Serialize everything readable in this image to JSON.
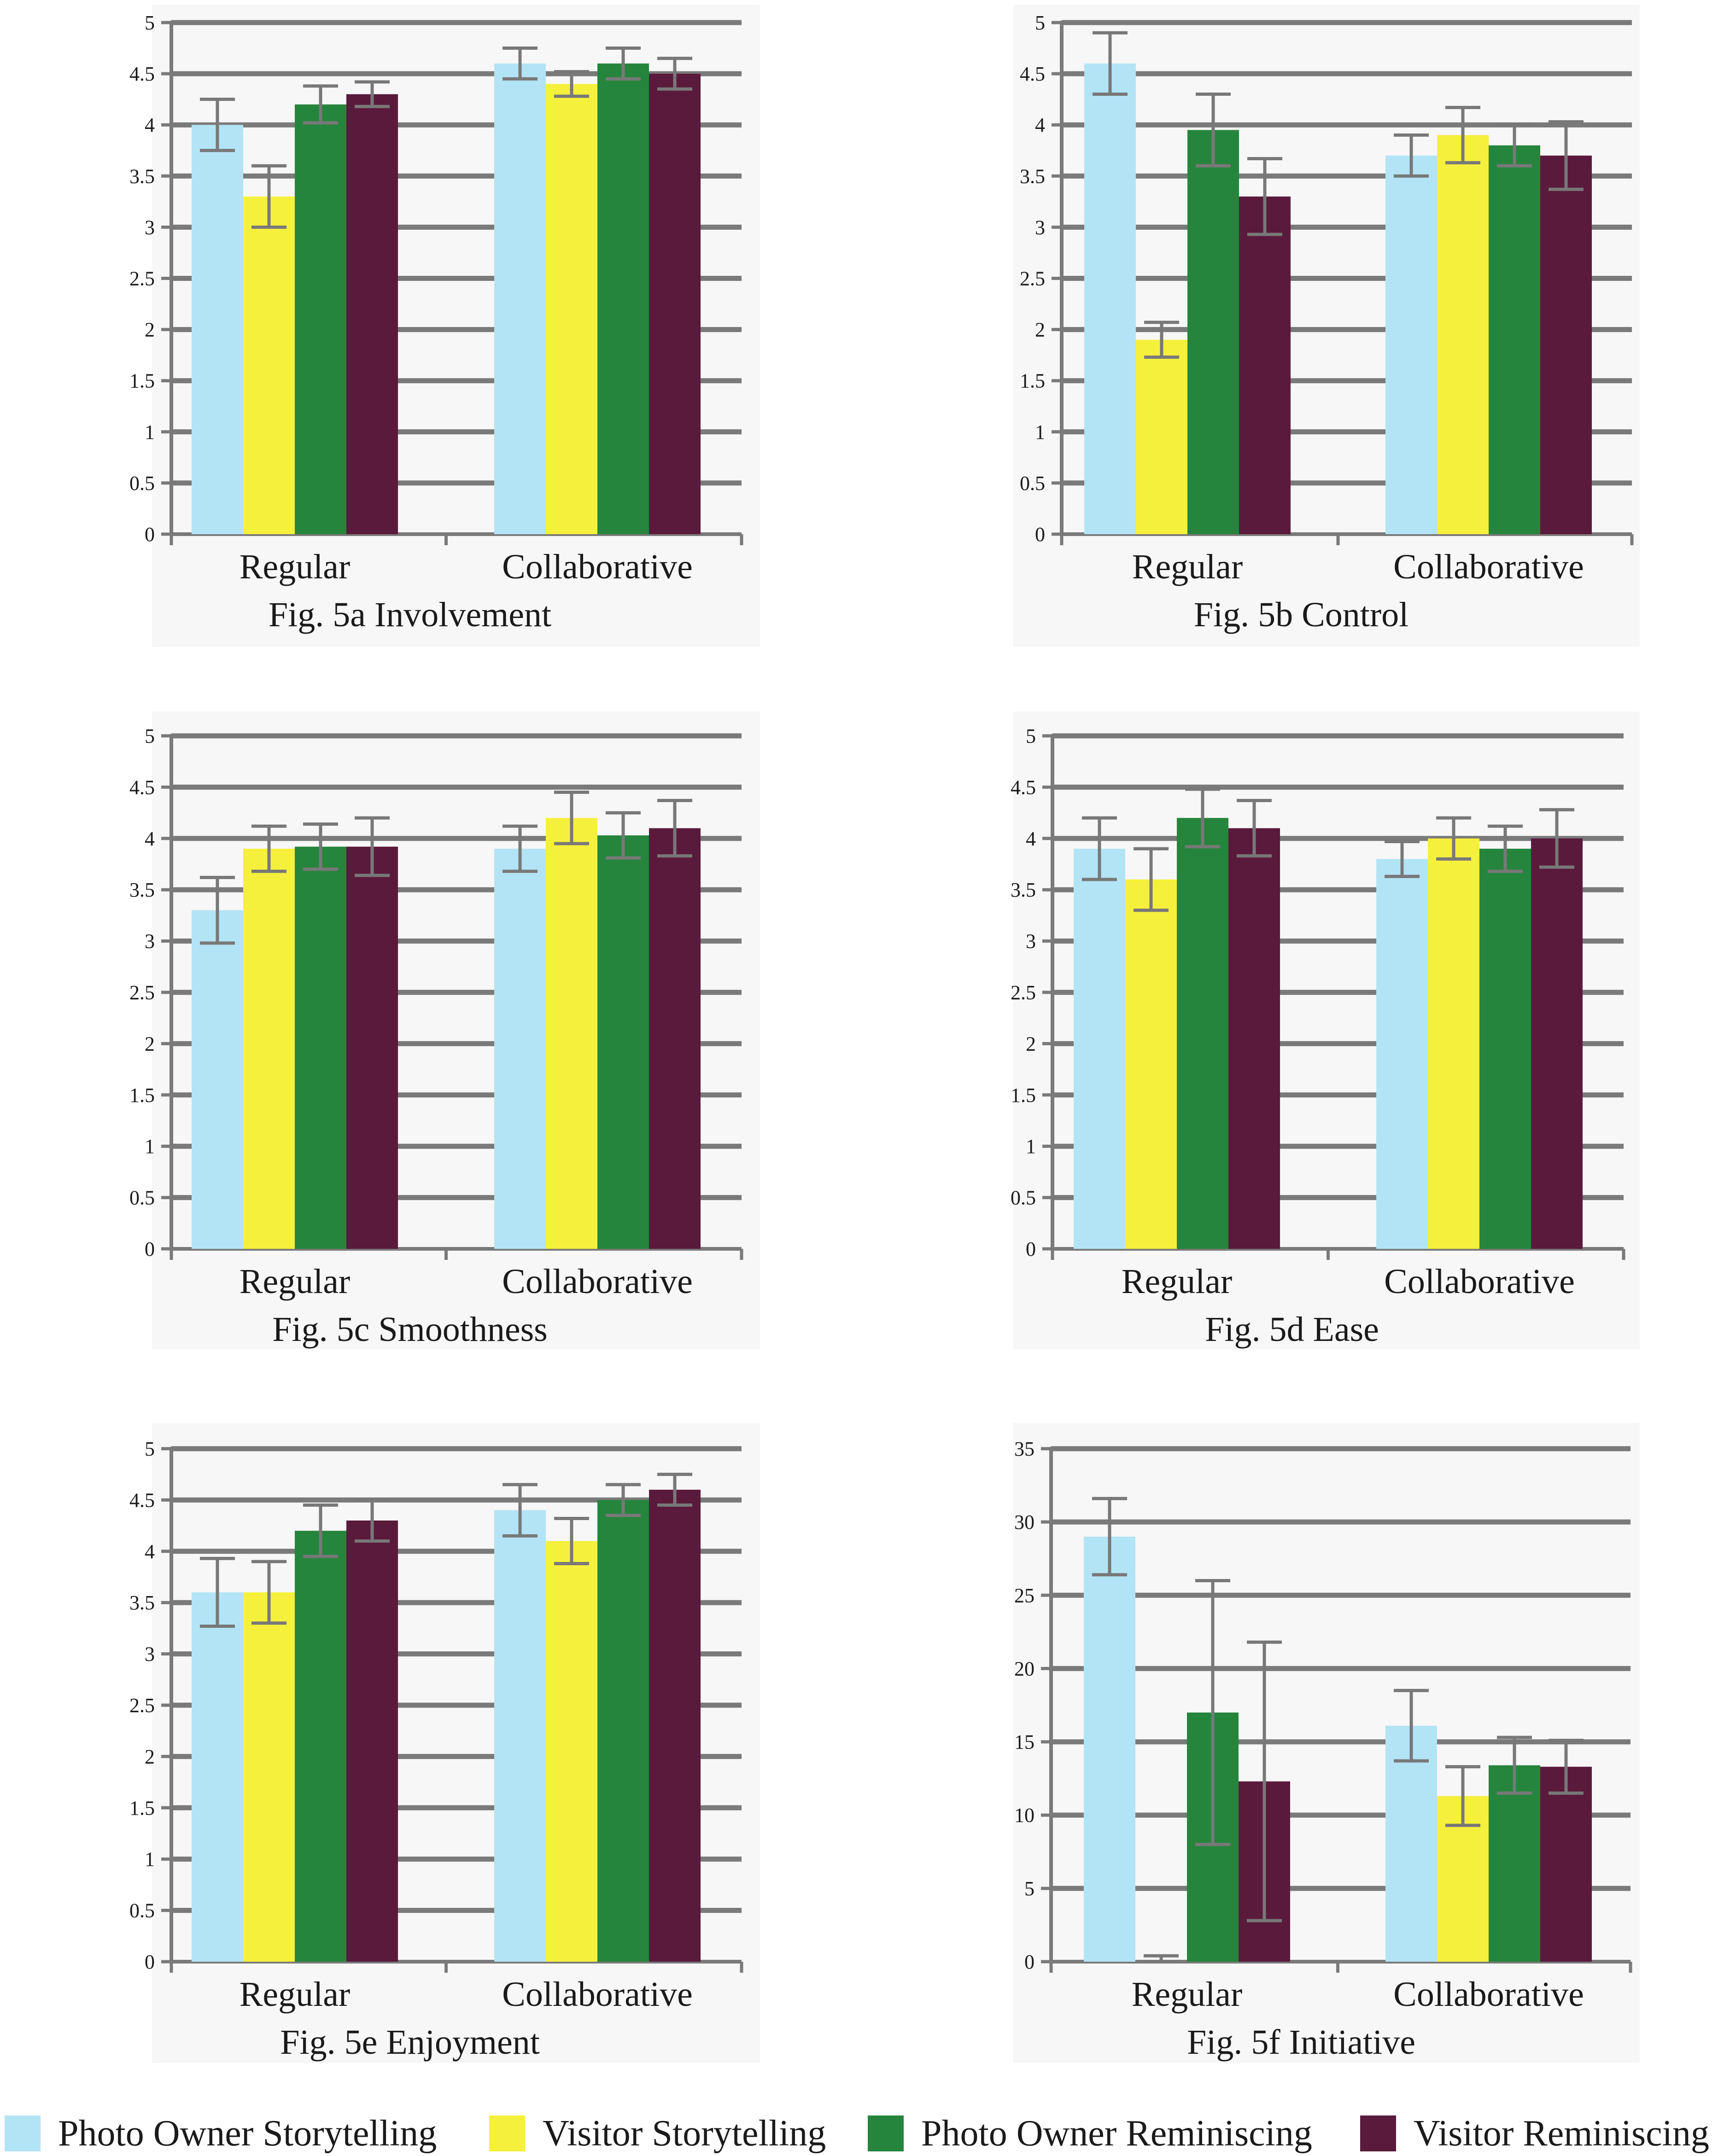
{
  "chart_data": [
    {
      "type": "bar",
      "title": "Fig. 5a Involvement",
      "categories": [
        "Regular",
        "Collaborative"
      ],
      "ylim": [
        0,
        5
      ],
      "yticks": [
        "0",
        "0.5",
        "1",
        "1.5",
        "2",
        "2.5",
        "3",
        "3.5",
        "4",
        "4.5",
        "5"
      ],
      "series": [
        {
          "name": "Photo Owner Storytelling",
          "values": [
            4.0,
            4.6
          ],
          "err": [
            0.25,
            0.15
          ]
        },
        {
          "name": "Visitor Storytelling",
          "values": [
            3.3,
            4.4
          ],
          "err": [
            0.3,
            0.12
          ]
        },
        {
          "name": "Photo Owner Reminiscing",
          "values": [
            4.2,
            4.6
          ],
          "err": [
            0.18,
            0.15
          ]
        },
        {
          "name": "Visitor Reminiscing",
          "values": [
            4.3,
            4.5
          ],
          "err": [
            0.12,
            0.15
          ]
        }
      ]
    },
    {
      "type": "bar",
      "title": "Fig. 5b Control",
      "categories": [
        "Regular",
        "Collaborative"
      ],
      "ylim": [
        0,
        5
      ],
      "yticks": [
        "0",
        "0.5",
        "1",
        "1.5",
        "2",
        "2.5",
        "3",
        "3.5",
        "4",
        "4.5",
        "5"
      ],
      "series": [
        {
          "name": "Photo Owner Storytelling",
          "values": [
            4.6,
            3.7
          ],
          "err": [
            0.3,
            0.2
          ]
        },
        {
          "name": "Visitor Storytelling",
          "values": [
            1.9,
            3.9
          ],
          "err": [
            0.17,
            0.27
          ]
        },
        {
          "name": "Photo Owner Reminiscing",
          "values": [
            3.95,
            3.8
          ],
          "err": [
            0.35,
            0.2
          ]
        },
        {
          "name": "Visitor Reminiscing",
          "values": [
            3.3,
            3.7
          ],
          "err": [
            0.37,
            0.33
          ]
        }
      ]
    },
    {
      "type": "bar",
      "title": "Fig. 5c Smoothness",
      "categories": [
        "Regular",
        "Collaborative"
      ],
      "ylim": [
        0,
        5
      ],
      "yticks": [
        "0",
        "0.5",
        "1",
        "1.5",
        "2",
        "2.5",
        "3",
        "3.5",
        "4",
        "4.5",
        "5"
      ],
      "series": [
        {
          "name": "Photo Owner Storytelling",
          "values": [
            3.3,
            3.9
          ],
          "err": [
            0.32,
            0.22
          ]
        },
        {
          "name": "Visitor Storytelling",
          "values": [
            3.9,
            4.2
          ],
          "err": [
            0.22,
            0.25
          ]
        },
        {
          "name": "Photo Owner Reminiscing",
          "values": [
            3.92,
            4.03
          ],
          "err": [
            0.22,
            0.22
          ]
        },
        {
          "name": "Visitor Reminiscing",
          "values": [
            3.92,
            4.1
          ],
          "err": [
            0.28,
            0.27
          ]
        }
      ]
    },
    {
      "type": "bar",
      "title": "Fig. 5d Ease",
      "categories": [
        "Regular",
        "Collaborative"
      ],
      "ylim": [
        0,
        5
      ],
      "yticks": [
        "0",
        "0.5",
        "1",
        "1.5",
        "2",
        "2.5",
        "3",
        "3.5",
        "4",
        "4.5",
        "5"
      ],
      "series": [
        {
          "name": "Photo Owner Storytelling",
          "values": [
            3.9,
            3.8
          ],
          "err": [
            0.3,
            0.17
          ]
        },
        {
          "name": "Visitor Storytelling",
          "values": [
            3.6,
            4.0
          ],
          "err": [
            0.3,
            0.2
          ]
        },
        {
          "name": "Photo Owner Reminiscing",
          "values": [
            4.2,
            3.9
          ],
          "err": [
            0.28,
            0.22
          ]
        },
        {
          "name": "Visitor Reminiscing",
          "values": [
            4.1,
            4.0
          ],
          "err": [
            0.27,
            0.28
          ]
        }
      ]
    },
    {
      "type": "bar",
      "title": "Fig. 5e Enjoyment",
      "categories": [
        "Regular",
        "Collaborative"
      ],
      "ylim": [
        0,
        5
      ],
      "yticks": [
        "0",
        "0.5",
        "1",
        "1.5",
        "2",
        "2.5",
        "3",
        "3.5",
        "4",
        "4.5",
        "5"
      ],
      "series": [
        {
          "name": "Photo Owner Storytelling",
          "values": [
            3.6,
            4.4
          ],
          "err": [
            0.33,
            0.25
          ]
        },
        {
          "name": "Visitor Storytelling",
          "values": [
            3.6,
            4.1
          ],
          "err": [
            0.3,
            0.22
          ]
        },
        {
          "name": "Photo Owner Reminiscing",
          "values": [
            4.2,
            4.5
          ],
          "err": [
            0.25,
            0.15
          ]
        },
        {
          "name": "Visitor Reminiscing",
          "values": [
            4.3,
            4.6
          ],
          "err": [
            0.2,
            0.15
          ]
        }
      ]
    },
    {
      "type": "bar",
      "title": "Fig. 5f Initiative",
      "categories": [
        "Regular",
        "Collaborative"
      ],
      "ylim": [
        0,
        35
      ],
      "yticks": [
        "0",
        "5",
        "10",
        "15",
        "20",
        "25",
        "30",
        "35"
      ],
      "series": [
        {
          "name": "Photo Owner Storytelling",
          "values": [
            29.0,
            16.1
          ],
          "err": [
            2.6,
            2.4
          ]
        },
        {
          "name": "Visitor Storytelling",
          "values": [
            0.0,
            11.3
          ],
          "err": [
            0.4,
            2.0
          ]
        },
        {
          "name": "Photo Owner Reminiscing",
          "values": [
            17.0,
            13.4
          ],
          "err": [
            9.0,
            1.9
          ]
        },
        {
          "name": "Visitor Reminiscing",
          "values": [
            12.3,
            13.3
          ],
          "err": [
            9.5,
            1.8
          ]
        }
      ]
    }
  ],
  "legend": {
    "items": [
      {
        "label": "Photo Owner Storytelling",
        "color": "#b3e4f6"
      },
      {
        "label": "Visitor Storytelling",
        "color": "#f5f03c"
      },
      {
        "label": "Photo Owner Reminiscing",
        "color": "#26853c"
      },
      {
        "label": "Visitor Reminiscing",
        "color": "#5a1a3c"
      }
    ]
  }
}
